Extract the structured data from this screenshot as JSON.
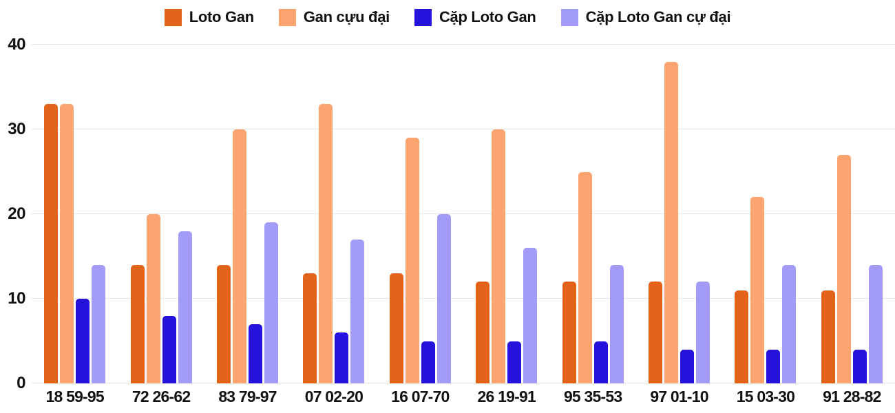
{
  "chart_data": {
    "type": "bar",
    "title": "",
    "categories": [
      "18 59-95",
      "72 26-62",
      "83 79-97",
      "07 02-20",
      "16 07-70",
      "26 19-91",
      "95 35-53",
      "97 01-10",
      "15 03-30",
      "91 28-82"
    ],
    "series": [
      {
        "name": "Loto Gan",
        "color": "#e2641a",
        "values": [
          33,
          14,
          14,
          13,
          13,
          12,
          12,
          12,
          11,
          11
        ]
      },
      {
        "name": "Gan cựu đại",
        "color": "#fba46f",
        "values": [
          33,
          20,
          30,
          33,
          29,
          30,
          25,
          38,
          22,
          27
        ]
      },
      {
        "name": "Cặp Loto Gan",
        "color": "#2513db",
        "values": [
          10,
          8,
          7,
          6,
          5,
          5,
          5,
          4,
          4,
          4
        ]
      },
      {
        "name": "Cặp Loto Gan cự đại",
        "color": "#a29cf8",
        "values": [
          14,
          18,
          19,
          17,
          20,
          16,
          14,
          12,
          14,
          14
        ]
      }
    ],
    "xlabel": "",
    "ylabel": "",
    "ylim": [
      0,
      40
    ],
    "yticks": [
      0,
      10,
      20,
      30,
      40
    ],
    "grid": "horizontal",
    "legend_position": "top",
    "background_color": "#ffffff",
    "gridline_color": "#e6e6e6",
    "axis_text_color": "#111111"
  }
}
